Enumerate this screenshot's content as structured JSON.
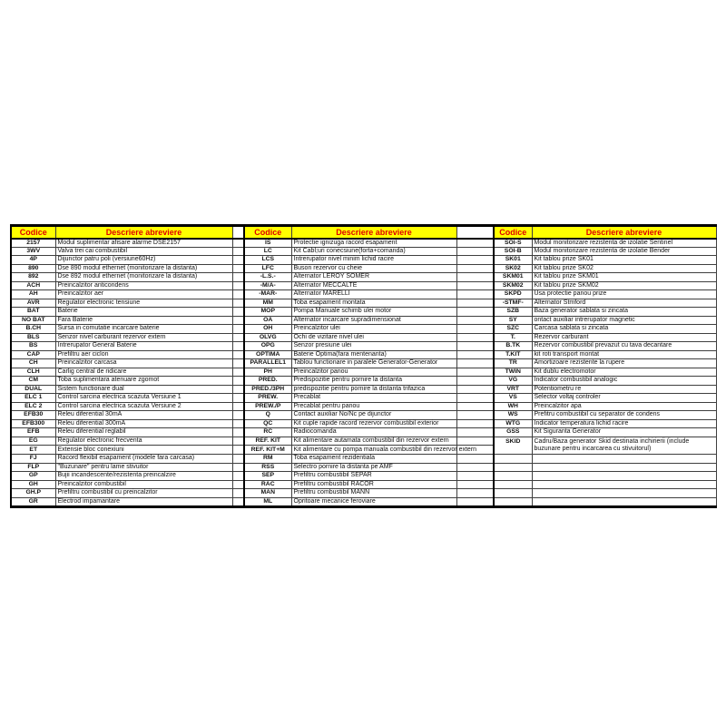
{
  "colors": {
    "header_bg": "#FFFF00",
    "header_text": "#E00000",
    "grid_line": "#3f3f3f",
    "outer_border": "#000000"
  },
  "table": {
    "header": {
      "codice": "Codice",
      "descriere": "Descriere abreviere"
    },
    "groups": [
      {
        "rows": [
          {
            "code": "2157",
            "desc": "Modul suplimentar afisare alarme DSE2157"
          },
          {
            "code": "3WV",
            "desc": "Valva trei cai combustibil"
          },
          {
            "code": "4P",
            "desc": "Dijunctor patru poli (versiune60Hz)"
          },
          {
            "code": "890",
            "desc": "Dse 890 modul ethernet (monitorizare la distanta)"
          },
          {
            "code": "892",
            "desc": "Dse 892 modul ethernet (monitorizare la distanta)"
          },
          {
            "code": "ACH",
            "desc": "Preincalzitor anticondens"
          },
          {
            "code": "AH",
            "desc": "Preincalzitor aer"
          },
          {
            "code": "AVR",
            "desc": "Regulator electronic tensiune"
          },
          {
            "code": "BAT",
            "desc": "Baterie"
          },
          {
            "code": "NO BAT",
            "desc": "Fara Baterie"
          },
          {
            "code": "B.CH",
            "desc": "Sursa in comutatie incarcare baterie"
          },
          {
            "code": "BLS",
            "desc": "Senzor nivel carburant rezervor extern"
          },
          {
            "code": "BS",
            "desc": "Intrerupator General Baterie"
          },
          {
            "code": "CAP",
            "desc": "Prefiltru aer ciclon"
          },
          {
            "code": "CH",
            "desc": "Preincalzitor carcasa"
          },
          {
            "code": "CLH",
            "desc": "Carlig central de ridicare"
          },
          {
            "code": "CM",
            "desc": "Toba suplimentara atenuare zgomot"
          },
          {
            "code": "DUAL",
            "desc": "Sistem functionare dual"
          },
          {
            "code": "ELC 1",
            "desc": "Control sarcina electrica  scazuta Versiune 1"
          },
          {
            "code": "ELC 2",
            "desc": "Control sarcina electrica  scazuta Versiune 2"
          },
          {
            "code": "EFB30",
            "desc": "Releu diferential 30mA"
          },
          {
            "code": "EFB300",
            "desc": "Releu diferential 300mA"
          },
          {
            "code": "EFB",
            "desc": "Releu diferential reglabil"
          },
          {
            "code": "EG",
            "desc": "Regulator electronic frecventa"
          },
          {
            "code": "ET",
            "desc": "Extensie bloc conexiuni"
          },
          {
            "code": "FJ",
            "desc": "Racord flexibil esapament (modele fara carcasa)"
          },
          {
            "code": "FLP",
            "desc": "\"Buzunare\" pentru lame stivuitor"
          },
          {
            "code": "GP",
            "desc": "Bujii incandescente/rezistenta preincalzire"
          },
          {
            "code": "GH",
            "desc": "Preincalzitor combustibil"
          },
          {
            "code": "GH.P",
            "desc": "Prefiltru combustibil cu preincalzitor"
          },
          {
            "code": "GR",
            "desc": "Electrod impamantare"
          }
        ]
      },
      {
        "rows": [
          {
            "code": "IS",
            "desc": "Protectie ignizuga racord esapament"
          },
          {
            "code": "LC",
            "desc": "Kit Cabl;uri conecsiune(forta+comanda)"
          },
          {
            "code": "LCS",
            "desc": "Intrerupator nivel minim lichid racire"
          },
          {
            "code": "LFC",
            "desc": "Buson rezervor cu cheie"
          },
          {
            "code": "-L.S.-",
            "desc": "Alternator LEROY SOMER"
          },
          {
            "code": "-M/A-",
            "desc": "Alternator MECCALTE"
          },
          {
            "code": "-MAR-",
            "desc": "Alternator MARELLI"
          },
          {
            "code": "MM",
            "desc": "Toba esapament montata"
          },
          {
            "code": "MOP",
            "desc": "Pompa Manuale schimb ulei motor"
          },
          {
            "code": "OA",
            "desc": "Alternator incarcare supradimensionat"
          },
          {
            "code": "OH",
            "desc": "Preincalzitor ulei"
          },
          {
            "code": "OLVG",
            "desc": "Ochi de vizitare nivel ulei"
          },
          {
            "code": "OPG",
            "desc": "Senzor presiune ulei"
          },
          {
            "code": "OPTIMA",
            "desc": "Baterie Optima(fara mentenanta)"
          },
          {
            "code": "PARALLEL1",
            "desc": "Tablou functionare in paralele Generator-Generator"
          },
          {
            "code": "PH",
            "desc": "Preincalzitor panou"
          },
          {
            "code": "PRED.",
            "desc": "Predispozitie pentru pornire la distanta"
          },
          {
            "code": "PRED./3PH",
            "desc": "predispozitie pentru pornire la distanta trifazica"
          },
          {
            "code": "PREW.",
            "desc": "Precablat"
          },
          {
            "code": "PREW./P",
            "desc": "Precablat pentru panou"
          },
          {
            "code": "Q",
            "desc": "Contact auxiliar No/Nc pe dijunctor"
          },
          {
            "code": "QC",
            "desc": "Kit cuple rapide racord rezervor combustibil exterior"
          },
          {
            "code": "RC",
            "desc": "Radiocomanda"
          },
          {
            "code": "REF. KIT",
            "desc": "Kit alimentare autamata combustibil din rezervor extern"
          },
          {
            "code": "REF. KIT+M",
            "desc": "Kit alimentare cu pompa manuala combustibil din rezervor extern"
          },
          {
            "code": "RM",
            "desc": "Toba esapament rezidentiala"
          },
          {
            "code": "RSS",
            "desc": "Selectro pornire la distanta pe AMF"
          },
          {
            "code": "SEP",
            "desc": "Prefiltru combustibil SEPAR"
          },
          {
            "code": "RAC",
            "desc": "Prefiltru combustibil RACOR"
          },
          {
            "code": "MAN",
            "desc": "Prefiltru combustibil MANN"
          },
          {
            "code": "ML",
            "desc": "Opritoare mecanice feroviare"
          }
        ]
      },
      {
        "rows": [
          {
            "code": "SOI-S",
            "desc": "Modul monitorizare rezistenta de izolatie Sentinel"
          },
          {
            "code": "SOI-B",
            "desc": "Modul monitorizare rezistenta de izolatie Bender"
          },
          {
            "code": "SK01",
            "desc": "Kit tablou prize SK01"
          },
          {
            "code": "SK02",
            "desc": "Kit tablou prize SK02"
          },
          {
            "code": "SKM01",
            "desc": "Kit tablou prize SKM01"
          },
          {
            "code": "SKM02",
            "desc": "Kit tablou prize SKM02"
          },
          {
            "code": "SKPD",
            "desc": "Usa protectie panou prize"
          },
          {
            "code": "-STMF-",
            "desc": "Alternator Stmford"
          },
          {
            "code": "SZB",
            "desc": "Baza generator sablata si zincata"
          },
          {
            "code": "SY",
            "desc": "ontact auxiliar intrerupator magnetic"
          },
          {
            "code": "SZC",
            "desc": "Carcasa sablata si zincata"
          },
          {
            "code": "T.",
            "desc": "Rezervor carburant"
          },
          {
            "code": "B.TK",
            "desc": "Rezervor combustibil prevazut cu tava decantare"
          },
          {
            "code": "T.KIT",
            "desc": "kit roti transport montat"
          },
          {
            "code": "TR",
            "desc": "Amortizoare rezistente la rupere"
          },
          {
            "code": "TWIN",
            "desc": "Kit dublu electromotor"
          },
          {
            "code": "VG",
            "desc": "Indicator combustibil analogic"
          },
          {
            "code": "VRT",
            "desc": "Potentiometru re"
          },
          {
            "code": "VS",
            "desc": "Selector voltaj controler"
          },
          {
            "code": "WH",
            "desc": "Preincalzitor apa"
          },
          {
            "code": "WS",
            "desc": "Prefitru combustibil cu separator de condens"
          },
          {
            "code": "WTG",
            "desc": "Indicator temperatura lichid racire"
          },
          {
            "code": "GSS",
            "desc": "Kit Siguranta Generator"
          },
          {
            "code": "SKID",
            "desc": "Cadru/Baza generator Skid destinata inchirierii  (include buzunare pentru incarcarea cu stivuitorul)",
            "rowspan": 2
          },
          {
            "merged": true
          },
          {
            "code": "",
            "desc": ""
          },
          {
            "code": "",
            "desc": ""
          },
          {
            "code": "",
            "desc": ""
          },
          {
            "code": "",
            "desc": ""
          },
          {
            "code": "",
            "desc": ""
          },
          {
            "code": "",
            "desc": ""
          }
        ]
      }
    ]
  }
}
